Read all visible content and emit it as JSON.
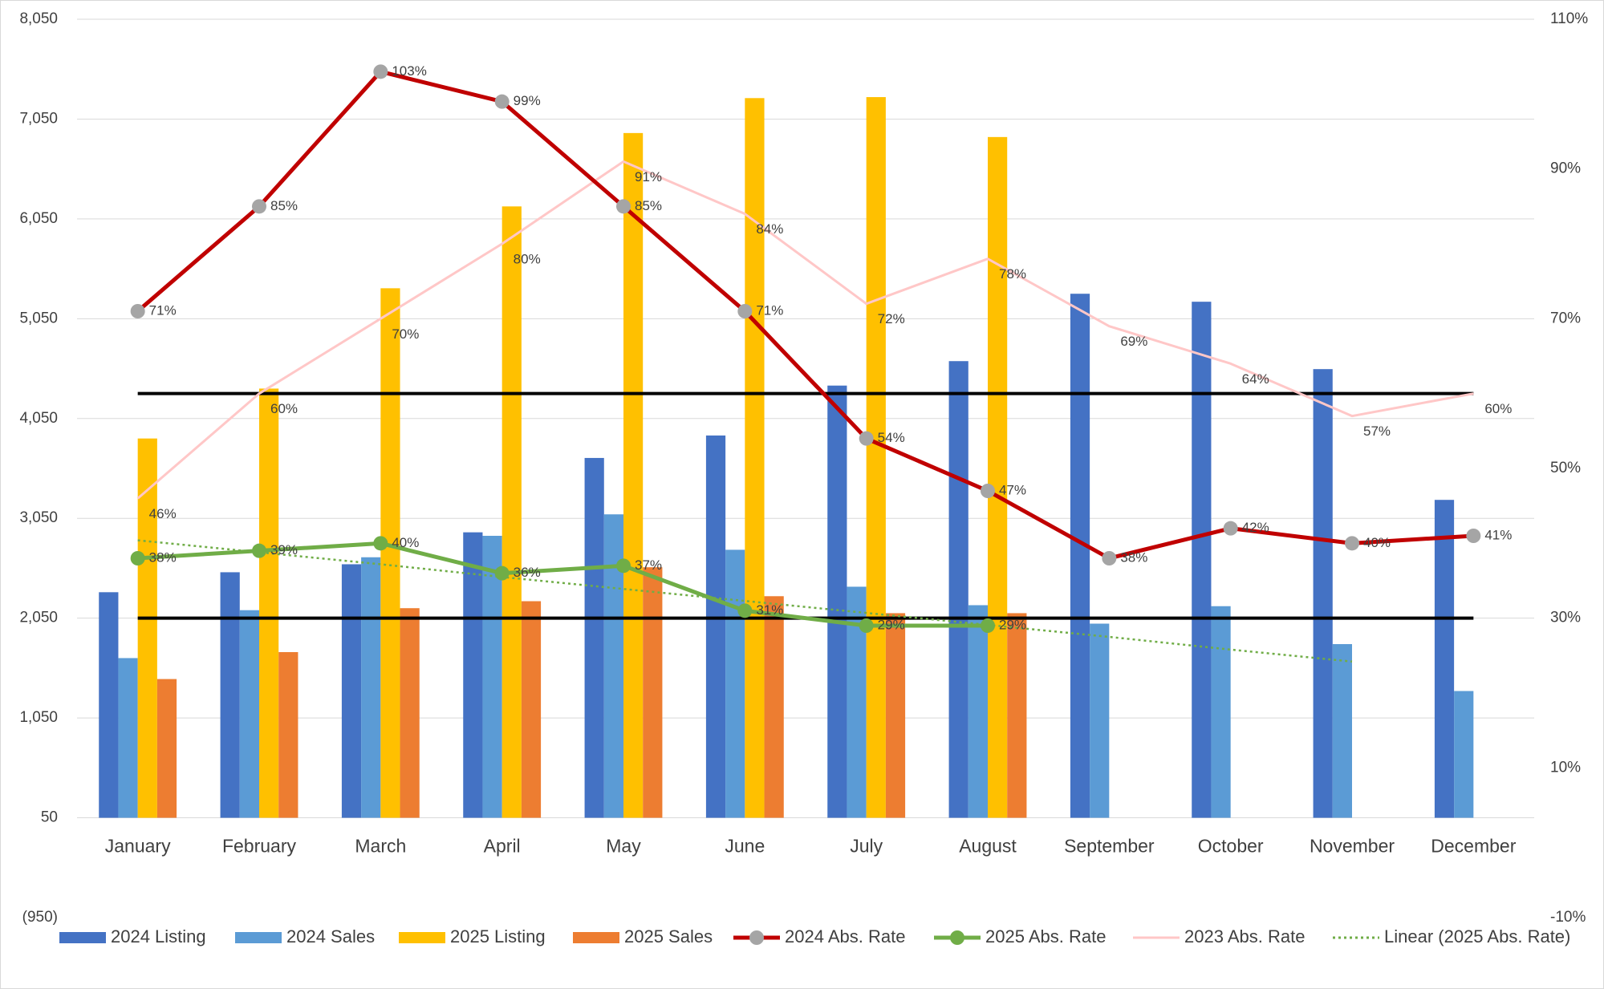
{
  "chart_data": {
    "type": "bar",
    "categories": [
      "January",
      "February",
      "March",
      "April",
      "May",
      "June",
      "July",
      "August",
      "September",
      "October",
      "November",
      "December"
    ],
    "ylim": [
      -950,
      8050
    ],
    "yticks": [
      {
        "value": -950,
        "label": "(950)"
      },
      50,
      {
        "value": 1050,
        "label": "1,050"
      },
      {
        "value": 2050,
        "label": "2,050"
      },
      {
        "value": 3050,
        "label": "3,050"
      },
      {
        "value": 4050,
        "label": "4,050"
      },
      {
        "value": 5050,
        "label": "5,050"
      },
      {
        "value": 6050,
        "label": "6,050"
      },
      {
        "value": 7050,
        "label": "7,050"
      },
      {
        "value": 8050,
        "label": "8,050"
      }
    ],
    "y2lim": [
      -10,
      110
    ],
    "y2ticks": [
      {
        "value": -10,
        "label": "-10%"
      },
      {
        "value": 10,
        "label": "10%"
      },
      {
        "value": 30,
        "label": "30%"
      },
      {
        "value": 50,
        "label": "50%"
      },
      {
        "value": 70,
        "label": "70%"
      },
      {
        "value": 90,
        "label": "90%"
      },
      {
        "value": 110,
        "label": "110%"
      }
    ],
    "x_axis_crosses": 50,
    "grid": true,
    "legend": "bottom",
    "reference_lines": {
      "axis": "y2",
      "color": "#000000",
      "values": [
        60,
        30
      ]
    },
    "series": [
      {
        "name": "2024 Listing",
        "type": "bar",
        "color": "#4472c4",
        "values": [
          2310,
          2510,
          2590,
          2910,
          3655,
          3880,
          4380,
          4625,
          5300,
          5220,
          4545,
          3235
        ]
      },
      {
        "name": "2024 Sales",
        "type": "bar",
        "color": "#5b9bd5",
        "values": [
          1650,
          2130,
          2660,
          2875,
          3090,
          2735,
          2365,
          2180,
          1995,
          2170,
          1790,
          1320
        ]
      },
      {
        "name": "2025 Listing",
        "type": "bar",
        "color": "#ffc000",
        "values": [
          3850,
          4350,
          5355,
          6175,
          6910,
          7260,
          7270,
          6870,
          null,
          null,
          null,
          null
        ]
      },
      {
        "name": "2025 Sales",
        "type": "bar",
        "color": "#ed7d31",
        "values": [
          1440,
          1710,
          2150,
          2220,
          2560,
          2270,
          2100,
          2100,
          null,
          null,
          null,
          null
        ]
      },
      {
        "name": "2024 Abs. Rate",
        "type": "line",
        "axis": "y2",
        "color": "#c00000",
        "marker_color": "#a5a5a5",
        "values": [
          71,
          85,
          103,
          99,
          85,
          71,
          54,
          47,
          38,
          42,
          40,
          41
        ],
        "value_labels": [
          "71%",
          "85%",
          "103%",
          "99%",
          "85%",
          "71%",
          "54%",
          "47%",
          "38%",
          "42%",
          "40%",
          "41%"
        ]
      },
      {
        "name": "2025 Abs. Rate",
        "type": "line",
        "axis": "y2",
        "color": "#70ad47",
        "marker_color": "#70ad47",
        "values": [
          38,
          39,
          40,
          36,
          37,
          31,
          29,
          29,
          null,
          null,
          null,
          null
        ],
        "value_labels": [
          "38%",
          "39%",
          "40%",
          "36%",
          "37%",
          "31%",
          "29%",
          "29%",
          null,
          null,
          null,
          null
        ]
      },
      {
        "name": "2023 Abs. Rate",
        "type": "line",
        "axis": "y2",
        "color": "#ffc7c7",
        "values": [
          46,
          60,
          70,
          80,
          91,
          84,
          72,
          78,
          69,
          64,
          57,
          60
        ],
        "value_labels": [
          "46%",
          "60%",
          "70%",
          "80%",
          "91%",
          "84%",
          "72%",
          "78%",
          "69%",
          "64%",
          "57%",
          "60%"
        ]
      },
      {
        "name": "Linear (2025 Abs. Rate)",
        "type": "trend",
        "axis": "y2",
        "color": "#70ad47",
        "values": [
          40.4,
          38.8,
          37.2,
          35.5,
          33.9,
          32.3,
          30.7,
          29.1,
          27.5,
          25.8,
          24.2,
          null
        ]
      }
    ]
  }
}
